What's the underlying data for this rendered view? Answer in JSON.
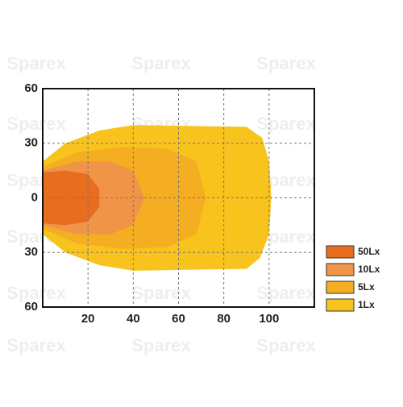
{
  "chart_data": {
    "type": "area",
    "watermark": "Sparex",
    "xlim": [
      0,
      120
    ],
    "xticks": [
      20,
      40,
      60,
      80,
      100
    ],
    "ylim": [
      -60,
      60
    ],
    "yticks": [
      60,
      30,
      0,
      {
        "value": -30,
        "label": "30"
      },
      {
        "value": -60,
        "label": "60"
      }
    ],
    "grid": true,
    "series": [
      {
        "name": "50Lx",
        "color": "#e86d1f",
        "x": [
          0,
          10,
          20,
          25,
          25,
          20,
          10,
          0
        ],
        "y": [
          14,
          15,
          13,
          5,
          -5,
          -13,
          -15,
          -14
        ]
      },
      {
        "name": "10Lx",
        "color": "#f09548",
        "x": [
          0,
          15,
          30,
          40,
          45,
          40,
          30,
          15,
          0
        ],
        "y": [
          15,
          20,
          20,
          15,
          0,
          -15,
          -20,
          -20,
          -15
        ]
      },
      {
        "name": "5Lx",
        "color": "#f5ae22",
        "x": [
          0,
          15,
          35,
          55,
          68,
          72,
          68,
          55,
          35,
          15,
          0
        ],
        "y": [
          17,
          25,
          28,
          27,
          20,
          0,
          -20,
          -27,
          -28,
          -25,
          -17
        ]
      },
      {
        "name": "1Lx",
        "color": "#f7c31c",
        "x": [
          0,
          10,
          25,
          40,
          90,
          97,
          100,
          101,
          100,
          96,
          90,
          40,
          25,
          10,
          0
        ],
        "y": [
          20,
          30,
          37,
          40,
          39,
          33,
          20,
          0,
          -20,
          -33,
          -39,
          -40,
          -37,
          -30,
          -20
        ]
      }
    ]
  }
}
